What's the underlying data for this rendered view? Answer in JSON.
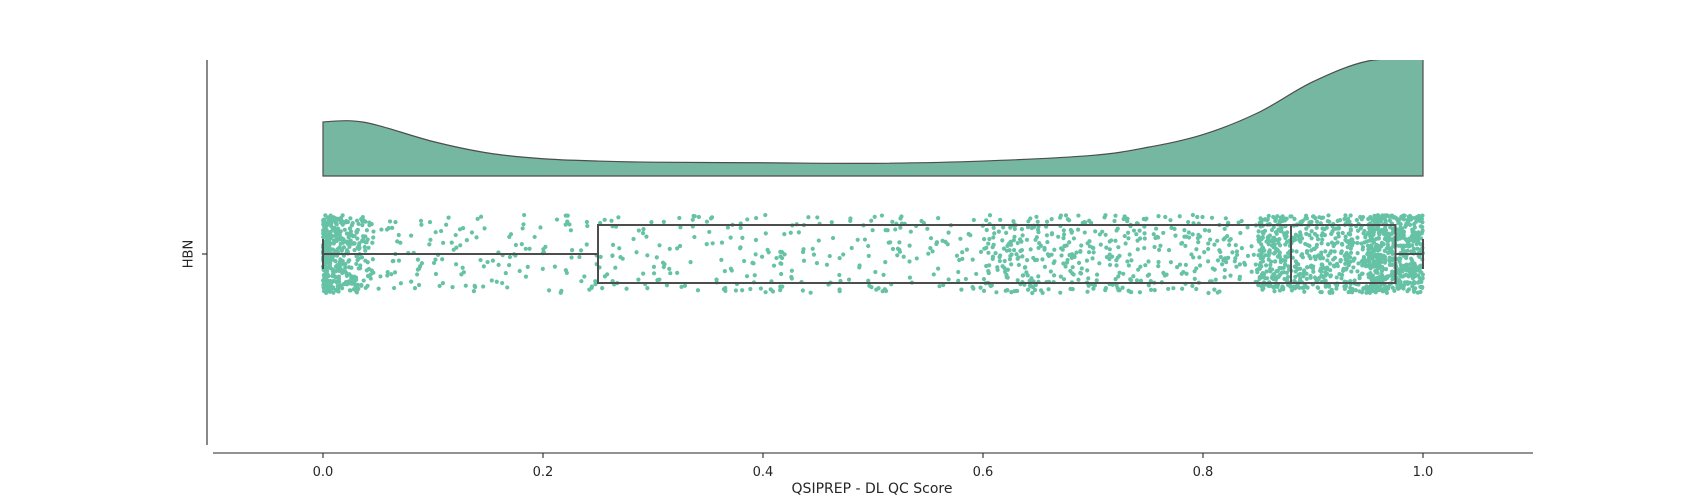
{
  "chart_data": {
    "type": "raincloud",
    "orientation": "horizontal",
    "title": "",
    "xlabel": "QSIPREP - DL QC Score",
    "ylabel": "",
    "categories": [
      "HBN"
    ],
    "xlim": [
      -0.1,
      1.1
    ],
    "xticks": [
      0.0,
      0.2,
      0.4,
      0.6,
      0.8,
      1.0
    ],
    "xtick_labels": [
      "0.0",
      "0.2",
      "0.4",
      "0.6",
      "0.8",
      "1.0"
    ],
    "grid": false,
    "legend": "none",
    "color": "#66c2a5",
    "cloud_color": "#76b7a1",
    "line_color": "#4d4d4d",
    "density": {
      "x": [
        0.0,
        0.025,
        0.05,
        0.1,
        0.15,
        0.2,
        0.25,
        0.3,
        0.4,
        0.5,
        0.6,
        0.7,
        0.75,
        0.8,
        0.85,
        0.9,
        0.95,
        1.0
      ],
      "y": [
        0.47,
        0.48,
        0.44,
        0.3,
        0.2,
        0.15,
        0.13,
        0.12,
        0.115,
        0.11,
        0.13,
        0.18,
        0.25,
        0.36,
        0.55,
        0.82,
        1.0,
        1.02
      ]
    },
    "boxplot": {
      "min": 0.0,
      "q1": 0.25,
      "median": 0.88,
      "q3": 0.975,
      "max": 1.0
    },
    "points": {
      "n": 2400,
      "note_distribution": "dense near 0.0 and 0.9-1.0, sparse in the middle"
    }
  }
}
